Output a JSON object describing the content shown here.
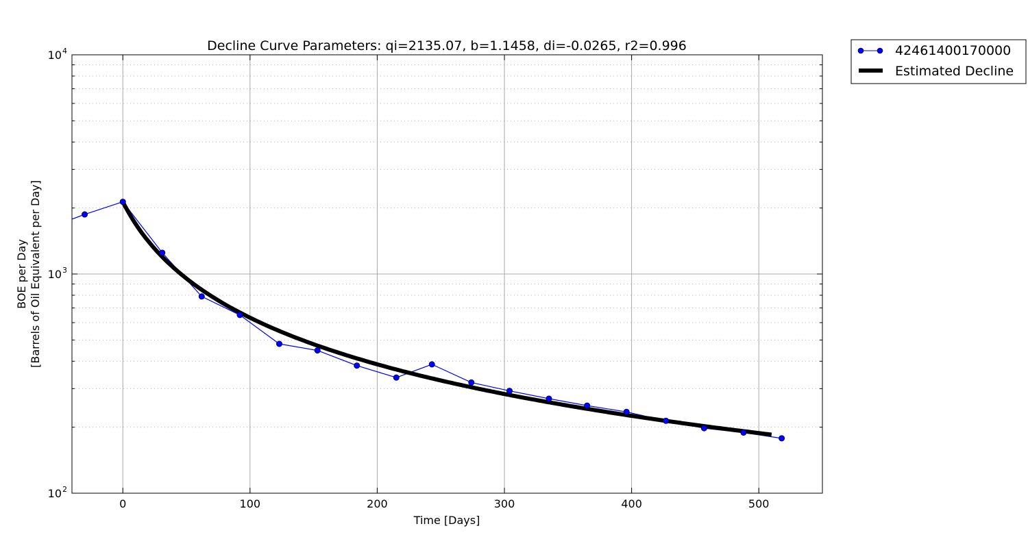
{
  "chart_data": {
    "type": "line",
    "title": "Decline Curve Parameters: qi=2135.07, b=1.1458, di=-0.0265, r2=0.996",
    "xlabel": "Time [Days]",
    "ylabel_line1": "BOE per Day",
    "ylabel_line2": "[Barrels of Oil Equivalent per Day]",
    "xlim": [
      -40,
      550
    ],
    "ylim": [
      100,
      10000
    ],
    "yscale": "log",
    "x_ticks": [
      "0",
      "100",
      "200",
      "300",
      "400",
      "500"
    ],
    "y_ticks": [
      {
        "base": "10",
        "exp": "2"
      },
      {
        "base": "10",
        "exp": "3"
      },
      {
        "base": "10",
        "exp": "4"
      }
    ],
    "grid": true,
    "legend_position": "outside-top-right",
    "series": [
      {
        "name": "42461400170000",
        "style": "line-markers",
        "color": "#0000ff",
        "x": [
          -40,
          -30,
          0,
          31,
          62,
          92,
          123,
          153,
          184,
          215,
          243,
          274,
          304,
          335,
          365,
          396,
          427,
          457,
          488,
          518
        ],
        "y": [
          1780,
          1870,
          2135,
          1250,
          790,
          650,
          480,
          448,
          382,
          337,
          387,
          320,
          293,
          270,
          251,
          235,
          214,
          198,
          189,
          178
        ]
      },
      {
        "name": "Estimated Decline",
        "style": "thick-line",
        "color": "#000000",
        "model": {
          "qi": 2135.07,
          "b": 1.1458,
          "di": 0.0265,
          "x_start": 0,
          "x_end": 510
        }
      }
    ]
  }
}
